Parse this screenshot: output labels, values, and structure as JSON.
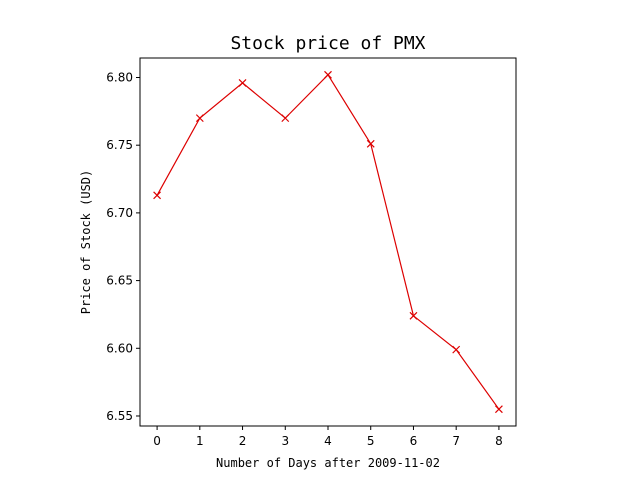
{
  "chart_data": {
    "type": "line",
    "title": "Stock price of PMX",
    "xlabel": "Number of Days after 2009-11-02",
    "ylabel": "Price of Stock (USD)",
    "x": [
      0,
      1,
      2,
      3,
      4,
      5,
      6,
      7,
      8
    ],
    "series": [
      {
        "values": [
          6.713,
          6.77,
          6.796,
          6.77,
          6.802,
          6.751,
          6.624,
          6.599,
          6.555
        ],
        "color": "#dd0000",
        "marker": "x"
      }
    ],
    "xticks": [
      0,
      1,
      2,
      3,
      4,
      5,
      6,
      7,
      8
    ],
    "xtick_labels": [
      "0",
      "1",
      "2",
      "3",
      "4",
      "5",
      "6",
      "7",
      "8"
    ],
    "yticks": [
      6.55,
      6.6,
      6.65,
      6.7,
      6.75,
      6.8
    ],
    "ytick_labels": [
      "6.55",
      "6.60",
      "6.65",
      "6.70",
      "6.75",
      "6.80"
    ],
    "xlim": [
      -0.4,
      8.4
    ],
    "ylim": [
      6.5426,
      6.8144
    ],
    "grid": false,
    "legend": "none"
  }
}
